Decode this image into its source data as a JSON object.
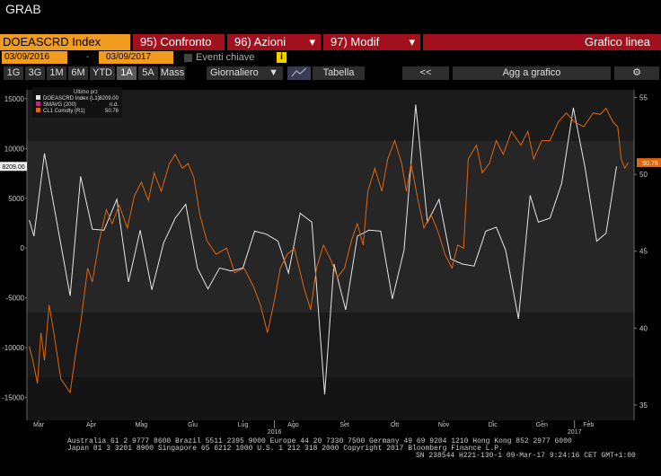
{
  "header": {
    "title": "GRAB"
  },
  "toolbar": {
    "security": "DOEASCRD Index",
    "buttons": [
      "95) Confronto",
      "96) Azioni",
      "97) Modif"
    ],
    "chart_kind": "Grafico linea"
  },
  "range": {
    "start": "03/09/2016",
    "separator": "-",
    "end": "03/09/2017",
    "events": "Eventi chiave",
    "info": "i"
  },
  "periods": {
    "buttons": [
      "1G",
      "3G",
      "1M",
      "6M",
      "YTD",
      "1A",
      "5A",
      "Mass"
    ],
    "active": "1A",
    "frequency": "Giornaliero",
    "table": "Tabella",
    "back": "<<",
    "add": "Agg a grafico"
  },
  "chart_data": {
    "type": "line",
    "legend_title": "Ultimo prz",
    "xlim": [
      0,
      52
    ],
    "xticks": [
      {
        "value": 1.0,
        "label": "Mar"
      },
      {
        "value": 5.5,
        "label": "Apr"
      },
      {
        "value": 9.8,
        "label": "Mag"
      },
      {
        "value": 14.2,
        "label": "Giu"
      },
      {
        "value": 18.5,
        "label": "Lug"
      },
      {
        "value": 22.8,
        "label": "Ago"
      },
      {
        "value": 27.2,
        "label": "Set"
      },
      {
        "value": 31.5,
        "label": "Ott"
      },
      {
        "value": 35.7,
        "label": "Nov"
      },
      {
        "value": 39.9,
        "label": "Dic"
      },
      {
        "value": 44.1,
        "label": "Gen"
      },
      {
        "value": 48.1,
        "label": "Feb"
      }
    ],
    "year_ticks": [
      {
        "value": 21.2,
        "label": "2016"
      },
      {
        "value": 46.9,
        "label": "2017"
      }
    ],
    "ylim": [
      -17300,
      15900
    ],
    "yticks": [
      -15000,
      -10000,
      -5000,
      0,
      5000,
      10000,
      15000
    ],
    "y2lim": [
      34,
      55.5
    ],
    "y2ticks": [
      35,
      40,
      45,
      50,
      55
    ],
    "series": [
      {
        "name": "DOEASCRD Index (L1)",
        "color": "#e6e6e6",
        "last": "8209.00",
        "axis": "y",
        "x": [
          0.2,
          0.6,
          1.5,
          2.7,
          3.7,
          4.6,
          5.6,
          6.6,
          7.7,
          8.7,
          9.7,
          10.7,
          11.7,
          12.7,
          13.6,
          14.6,
          15.5,
          16.5,
          17.5,
          18.5,
          19.5,
          20.5,
          21.5,
          22.4,
          23.4,
          24.4,
          25.5,
          26.3,
          27.3,
          28.3,
          29.3,
          30.3,
          31.3,
          32.3,
          33.3,
          34.3,
          35.3,
          36.3,
          37.3,
          38.3,
          39.3,
          40.2,
          41.0,
          42.1,
          43.1,
          43.8,
          44.8,
          45.8,
          46.8,
          47.8,
          48.8,
          49.6,
          50.5
        ],
        "values": [
          2800,
          1200,
          9500,
          1700,
          -4800,
          7200,
          1900,
          1800,
          4900,
          -3400,
          1800,
          -4200,
          500,
          3000,
          4400,
          -2000,
          -4100,
          -2000,
          -2300,
          -2000,
          1700,
          1400,
          700,
          -2500,
          3500,
          2600,
          -14700,
          -1600,
          -6200,
          1200,
          1800,
          1700,
          -5100,
          -200,
          14400,
          2600,
          4900,
          -1100,
          -1600,
          -1800,
          1700,
          2100,
          -200,
          -7100,
          5300,
          2600,
          3000,
          6500,
          14100,
          8100,
          700,
          1500,
          8209
        ]
      },
      {
        "name": "SMAVG (200)",
        "color": "#d81b8c",
        "last": "n.d.",
        "axis": "y",
        "x": [],
        "values": []
      },
      {
        "name": "CL1 Comdty (R1)",
        "color": "#e0650f",
        "last": "50.76",
        "axis": "y2",
        "x": [
          0.2,
          0.5,
          0.9,
          1.2,
          1.5,
          1.9,
          2.3,
          2.9,
          3.7,
          4.2,
          4.6,
          5.2,
          5.6,
          6.2,
          6.8,
          7.3,
          7.9,
          8.6,
          9.2,
          9.8,
          10.4,
          10.9,
          11.5,
          12.2,
          12.7,
          13.3,
          13.8,
          14.3,
          14.8,
          15.4,
          16.2,
          17.1,
          17.8,
          18.6,
          19.4,
          20.0,
          20.6,
          21.2,
          21.7,
          22.3,
          22.9,
          23.7,
          24.3,
          24.8,
          25.4,
          26.0,
          26.6,
          27.2,
          27.8,
          28.3,
          28.8,
          29.2,
          29.8,
          30.4,
          30.9,
          31.5,
          32.1,
          32.5,
          32.9,
          33.5,
          34.0,
          34.6,
          35.2,
          35.8,
          36.4,
          36.9,
          37.4,
          37.8,
          38.5,
          39.0,
          39.6,
          40.2,
          40.8,
          41.5,
          42.3,
          42.9,
          43.4,
          44.1,
          44.8,
          45.5,
          46.2,
          46.9,
          47.7,
          48.5,
          49.1,
          49.6,
          50.2,
          50.6,
          50.9,
          51.2,
          51.5
        ],
        "values": [
          38.8,
          37.9,
          36.4,
          39.7,
          37.9,
          41.5,
          39.7,
          36.7,
          35.8,
          38.5,
          40.3,
          43.9,
          43.0,
          45.7,
          47.7,
          46.8,
          48.0,
          46.5,
          48.6,
          49.5,
          48.3,
          50.1,
          48.9,
          50.7,
          51.3,
          50.4,
          50.7,
          49.8,
          47.4,
          45.7,
          44.8,
          45.2,
          43.6,
          43.9,
          42.7,
          41.5,
          39.7,
          41.8,
          43.9,
          44.8,
          45.2,
          42.7,
          41.2,
          43.9,
          45.4,
          44.5,
          43.3,
          43.9,
          45.7,
          46.8,
          45.4,
          48.9,
          50.4,
          48.9,
          51.0,
          52.2,
          50.7,
          48.9,
          50.7,
          48.3,
          46.5,
          47.4,
          46.3,
          44.8,
          43.9,
          45.4,
          45.2,
          51.0,
          51.9,
          50.1,
          50.7,
          52.2,
          51.3,
          52.8,
          51.9,
          52.8,
          51.0,
          52.2,
          52.2,
          53.4,
          54.0,
          53.4,
          53.1,
          54.0,
          53.9,
          54.3,
          53.4,
          53.1,
          51.0,
          50.4,
          50.76
        ]
      }
    ]
  },
  "footer": {
    "line1": "Australia 61 2 9777 8600 Brazil 5511 2395 9000 Europe 44 20 7330 7500 Germany 49 69 9204 1210 Hong Kong 852 2977 6000",
    "line2": "Japan 81 3 3201 8900      Singapore 65 6212 1000      U.S. 1 212 318 2000              Copyright 2017 Bloomberg Finance L.P.",
    "line3": "SN 238544 H221-130-1 09-Mar-17  9:24:16 CET  GMT+1:00"
  }
}
